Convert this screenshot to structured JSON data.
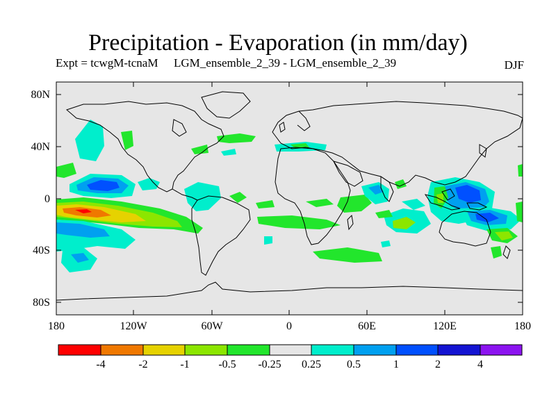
{
  "title": "Precipitation - Evaporation (in mm/day)",
  "subtitle": {
    "left": "Expt = tcwgM-tcnaM",
    "center": "LGM_ensemble_2_39 - LGM_ensemble_2_39",
    "season": "DJF"
  },
  "map": {
    "projection": "cylindrical-equidistant",
    "lon_range": [
      -180,
      180
    ],
    "lat_range": [
      -90,
      90
    ],
    "ocean_fill": "#e6e6e6",
    "lat_ticks": [
      {
        "value": 80,
        "label": "80N"
      },
      {
        "value": 40,
        "label": "40N"
      },
      {
        "value": 0,
        "label": "0"
      },
      {
        "value": -40,
        "label": "40S"
      },
      {
        "value": -80,
        "label": "80S"
      }
    ],
    "lon_ticks": [
      {
        "value": -180,
        "label": "180"
      },
      {
        "value": -120,
        "label": "120W"
      },
      {
        "value": -60,
        "label": "60W"
      },
      {
        "value": 0,
        "label": "0"
      },
      {
        "value": 60,
        "label": "60E"
      },
      {
        "value": 120,
        "label": "120E"
      },
      {
        "value": 180,
        "label": "180"
      }
    ]
  },
  "colorbar": {
    "colors": [
      "#ff0000",
      "#f07800",
      "#e6d200",
      "#8ce600",
      "#22e62c",
      "#e6e6e6",
      "#00eecc",
      "#00a0f0",
      "#0050ff",
      "#1414d2",
      "#8c14f0"
    ],
    "labels": [
      "-4",
      "-2",
      "-1",
      "-0.5",
      "-0.25",
      "0.25",
      "0.5",
      "1",
      "2",
      "4"
    ]
  }
}
